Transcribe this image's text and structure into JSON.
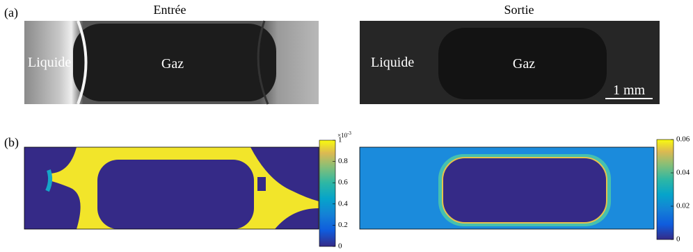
{
  "panel_a": {
    "label": "(a)",
    "left": {
      "title": "Entrée",
      "liquid_label": "Liquide",
      "gas_label": "Gaz"
    },
    "right": {
      "title": "Sortie",
      "liquid_label": "Liquide",
      "gas_label": "Gaz",
      "scale_bar": "1 mm"
    }
  },
  "panel_b": {
    "label": "(b)",
    "left_colorbar": {
      "multiplier": {
        "base": "×10",
        "exponent": "-3"
      },
      "lim": [
        0,
        1
      ],
      "ticks": [
        0,
        0.2,
        0.4,
        0.6,
        0.8,
        1
      ]
    },
    "right_colorbar": {
      "lim": [
        0,
        0.06
      ],
      "ticks": [
        0,
        0.02,
        0.04,
        0.06
      ]
    }
  }
}
